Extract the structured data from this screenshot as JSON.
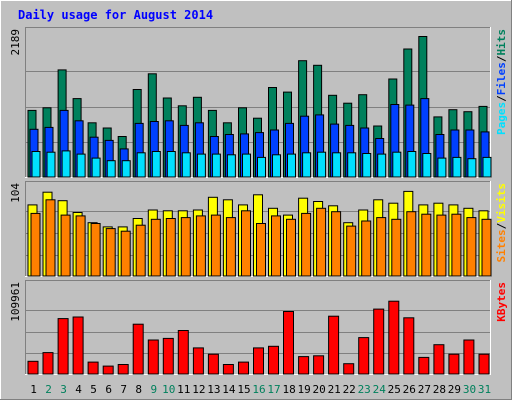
{
  "title": "Daily usage for August 2014",
  "colors": {
    "background": "#c0c0c0",
    "panel": "#c0c0c0",
    "title": "#0000ff",
    "hits": "#00805c",
    "files": "#0040ff",
    "pages": "#00e0ff",
    "visits": "#ffff00",
    "sites": "#ff8000",
    "kbytes": "#ff0000",
    "weekend_label": "#00805c",
    "weekday_label": "#000000"
  },
  "chart_data": [
    {
      "type": "bar",
      "title": "Daily usage for August 2014",
      "ylabel_parts": [
        "Pages",
        "Files",
        "Hits"
      ],
      "ymax_label": "2189",
      "ylim": [
        0,
        2189
      ],
      "categories": [
        "1",
        "2",
        "3",
        "4",
        "5",
        "6",
        "7",
        "8",
        "9",
        "10",
        "11",
        "12",
        "13",
        "14",
        "15",
        "16",
        "17",
        "18",
        "19",
        "20",
        "21",
        "22",
        "23",
        "24",
        "25",
        "26",
        "27",
        "28",
        "29",
        "30",
        "31"
      ],
      "weekend_days": [
        "2",
        "3",
        "9",
        "10",
        "16",
        "17",
        "23",
        "24",
        "30",
        "31"
      ],
      "series": [
        {
          "name": "Hits",
          "values": [
            1020,
            1060,
            1640,
            1200,
            830,
            750,
            620,
            1340,
            1580,
            1210,
            1090,
            1220,
            1020,
            830,
            1060,
            900,
            1370,
            1300,
            1780,
            1710,
            1250,
            1130,
            1260,
            780,
            1500,
            1960,
            2150,
            920,
            1030,
            1000,
            1080
          ]
        },
        {
          "name": "Files",
          "values": [
            730,
            760,
            1020,
            860,
            610,
            560,
            430,
            820,
            850,
            860,
            790,
            830,
            620,
            650,
            660,
            680,
            720,
            820,
            930,
            950,
            810,
            790,
            750,
            590,
            1110,
            1100,
            1200,
            650,
            720,
            720,
            690
          ]
        },
        {
          "name": "Pages",
          "values": [
            390,
            380,
            400,
            350,
            290,
            250,
            250,
            370,
            390,
            390,
            370,
            350,
            350,
            340,
            350,
            300,
            340,
            350,
            370,
            380,
            370,
            370,
            360,
            350,
            380,
            390,
            360,
            290,
            300,
            280,
            300
          ]
        }
      ]
    },
    {
      "type": "bar",
      "ylabel_parts": [
        "Sites",
        "Visits"
      ],
      "ymax_label": "104",
      "ylim": [
        0,
        104
      ],
      "categories": [
        "1",
        "2",
        "3",
        "4",
        "5",
        "6",
        "7",
        "8",
        "9",
        "10",
        "11",
        "12",
        "13",
        "14",
        "15",
        "16",
        "17",
        "18",
        "19",
        "20",
        "21",
        "22",
        "23",
        "24",
        "25",
        "26",
        "27",
        "28",
        "29",
        "30",
        "31"
      ],
      "series": [
        {
          "name": "Visits",
          "values": [
            84,
            99,
            89,
            75,
            63,
            58,
            58,
            68,
            78,
            77,
            77,
            78,
            93,
            90,
            84,
            96,
            80,
            72,
            92,
            88,
            83,
            63,
            78,
            90,
            86,
            100,
            84,
            86,
            84,
            80,
            77
          ]
        },
        {
          "name": "Sites",
          "values": [
            74,
            90,
            72,
            71,
            62,
            56,
            53,
            60,
            67,
            68,
            69,
            71,
            72,
            69,
            77,
            62,
            71,
            67,
            74,
            80,
            76,
            59,
            65,
            69,
            67,
            76,
            73,
            72,
            73,
            69,
            67
          ]
        }
      ]
    },
    {
      "type": "bar",
      "ylabel_parts": [
        "KBytes"
      ],
      "ymax_label": "109961",
      "ylim": [
        0,
        109961
      ],
      "categories": [
        "1",
        "2",
        "3",
        "4",
        "5",
        "6",
        "7",
        "8",
        "9",
        "10",
        "11",
        "12",
        "13",
        "14",
        "15",
        "16",
        "17",
        "18",
        "19",
        "20",
        "21",
        "22",
        "23",
        "24",
        "25",
        "26",
        "27",
        "28",
        "29",
        "30",
        "31"
      ],
      "series": [
        {
          "name": "KBytes",
          "values": [
            16000,
            27000,
            70000,
            72000,
            15000,
            10000,
            12000,
            63000,
            43000,
            45000,
            55000,
            33000,
            25000,
            12000,
            15000,
            33000,
            35000,
            79000,
            22000,
            23000,
            73000,
            13000,
            46000,
            82000,
            92000,
            71000,
            21000,
            37000,
            25000,
            43000,
            25000
          ]
        }
      ]
    }
  ]
}
